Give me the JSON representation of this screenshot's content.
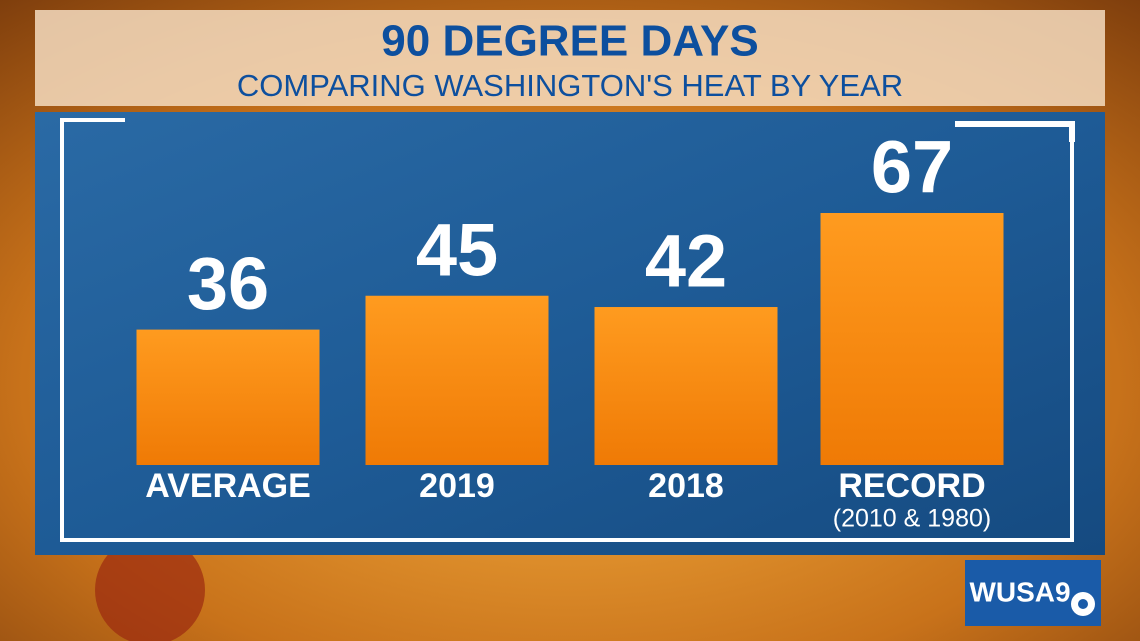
{
  "chart_data": {
    "type": "bar",
    "title": "90 DEGREE DAYS",
    "subtitle": "COMPARING WASHINGTON'S HEAT BY YEAR",
    "categories": [
      "AVERAGE",
      "2019",
      "2018",
      "RECORD"
    ],
    "values": [
      36,
      45,
      42,
      67
    ],
    "color": "#f58a0c",
    "annotation": "(2010 & 1980)",
    "logo": "WUSA9"
  }
}
